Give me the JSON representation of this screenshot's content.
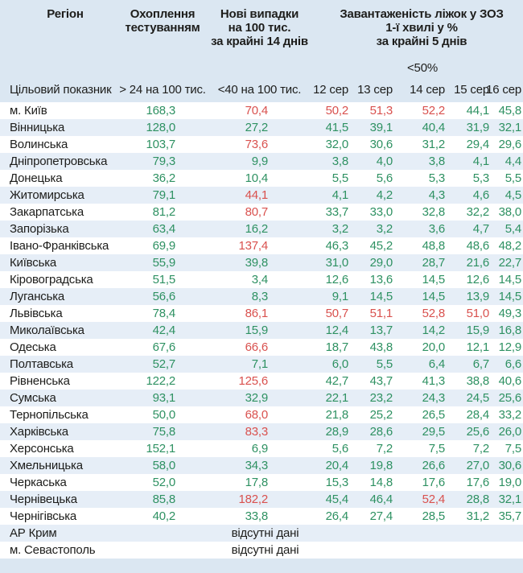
{
  "colors": {
    "bg": "#dbe7f2",
    "stripe": "#e6eef7",
    "dark": "#1d1d1b",
    "ok": "#2e9162",
    "bad": "#d9514e"
  },
  "chart_data": {
    "type": "table",
    "header": {
      "region": "Регіон",
      "testing": "Охоплення\nтестуванням",
      "new_cases": "Нові випадки\nна 100 тис.\nза крайні 14 днів",
      "beds": "Завантаженість ліжок у ЗОЗ\n1-ї хвилі у %\nза крайні 5 днів",
      "fifty": "<50%"
    },
    "target_row": {
      "label": "Цільовий показник",
      "testing": "> 24 на 100 тис.",
      "new_cases": "<40 на 100 тис.",
      "dates": [
        "12 сер",
        "13 сер",
        "14 сер",
        "15 сер",
        "16 сер"
      ]
    },
    "no_data_text": "відсутні дані",
    "rows": [
      {
        "region": "м. Київ",
        "testing": [
          "168,3",
          "ok"
        ],
        "cases": [
          "70,4",
          "bad"
        ],
        "days": [
          [
            "50,2",
            "bad"
          ],
          [
            "51,3",
            "bad"
          ],
          [
            "52,2",
            "bad"
          ],
          [
            "44,1",
            "ok"
          ],
          [
            "45,8",
            "ok"
          ]
        ]
      },
      {
        "region": "Вінницька",
        "testing": [
          "128,0",
          "ok"
        ],
        "cases": [
          "27,2",
          "ok"
        ],
        "days": [
          [
            "41,5",
            "ok"
          ],
          [
            "39,1",
            "ok"
          ],
          [
            "40,4",
            "ok"
          ],
          [
            "31,9",
            "ok"
          ],
          [
            "32,1",
            "ok"
          ]
        ]
      },
      {
        "region": "Волинська",
        "testing": [
          "103,7",
          "ok"
        ],
        "cases": [
          "73,6",
          "bad"
        ],
        "days": [
          [
            "32,0",
            "ok"
          ],
          [
            "30,6",
            "ok"
          ],
          [
            "31,2",
            "ok"
          ],
          [
            "29,4",
            "ok"
          ],
          [
            "29,6",
            "ok"
          ]
        ]
      },
      {
        "region": "Дніпропетровська",
        "testing": [
          "79,3",
          "ok"
        ],
        "cases": [
          "9,9",
          "ok"
        ],
        "days": [
          [
            "3,8",
            "ok"
          ],
          [
            "4,0",
            "ok"
          ],
          [
            "3,8",
            "ok"
          ],
          [
            "4,1",
            "ok"
          ],
          [
            "4,4",
            "ok"
          ]
        ]
      },
      {
        "region": "Донецька",
        "testing": [
          "36,2",
          "ok"
        ],
        "cases": [
          "10,4",
          "ok"
        ],
        "days": [
          [
            "5,5",
            "ok"
          ],
          [
            "5,6",
            "ok"
          ],
          [
            "5,3",
            "ok"
          ],
          [
            "5,3",
            "ok"
          ],
          [
            "5,5",
            "ok"
          ]
        ]
      },
      {
        "region": "Житомирська",
        "testing": [
          "79,1",
          "ok"
        ],
        "cases": [
          "44,1",
          "bad"
        ],
        "days": [
          [
            "4,1",
            "ok"
          ],
          [
            "4,2",
            "ok"
          ],
          [
            "4,3",
            "ok"
          ],
          [
            "4,6",
            "ok"
          ],
          [
            "4,5",
            "ok"
          ]
        ]
      },
      {
        "region": "Закарпатська",
        "testing": [
          "81,2",
          "ok"
        ],
        "cases": [
          "80,7",
          "bad"
        ],
        "days": [
          [
            "33,7",
            "ok"
          ],
          [
            "33,0",
            "ok"
          ],
          [
            "32,8",
            "ok"
          ],
          [
            "32,2",
            "ok"
          ],
          [
            "38,0",
            "ok"
          ]
        ]
      },
      {
        "region": "Запорізька",
        "testing": [
          "63,4",
          "ok"
        ],
        "cases": [
          "16,2",
          "ok"
        ],
        "days": [
          [
            "3,2",
            "ok"
          ],
          [
            "3,2",
            "ok"
          ],
          [
            "3,6",
            "ok"
          ],
          [
            "4,7",
            "ok"
          ],
          [
            "5,4",
            "ok"
          ]
        ]
      },
      {
        "region": "Івано-Франківська",
        "testing": [
          "69,9",
          "ok"
        ],
        "cases": [
          "137,4",
          "bad"
        ],
        "days": [
          [
            "46,3",
            "ok"
          ],
          [
            "45,2",
            "ok"
          ],
          [
            "48,8",
            "ok"
          ],
          [
            "48,6",
            "ok"
          ],
          [
            "48,2",
            "ok"
          ]
        ]
      },
      {
        "region": "Київська",
        "testing": [
          "55,9",
          "ok"
        ],
        "cases": [
          "39,8",
          "ok"
        ],
        "days": [
          [
            "31,0",
            "ok"
          ],
          [
            "29,0",
            "ok"
          ],
          [
            "28,7",
            "ok"
          ],
          [
            "21,6",
            "ok"
          ],
          [
            "22,7",
            "ok"
          ]
        ]
      },
      {
        "region": "Кіровоградська",
        "testing": [
          "51,5",
          "ok"
        ],
        "cases": [
          "3,4",
          "ok"
        ],
        "days": [
          [
            "12,6",
            "ok"
          ],
          [
            "13,6",
            "ok"
          ],
          [
            "14,5",
            "ok"
          ],
          [
            "12,6",
            "ok"
          ],
          [
            "14,5",
            "ok"
          ]
        ]
      },
      {
        "region": "Луганська",
        "testing": [
          "56,6",
          "ok"
        ],
        "cases": [
          "8,3",
          "ok"
        ],
        "days": [
          [
            "9,1",
            "ok"
          ],
          [
            "14,5",
            "ok"
          ],
          [
            "14,5",
            "ok"
          ],
          [
            "13,9",
            "ok"
          ],
          [
            "14,5",
            "ok"
          ]
        ]
      },
      {
        "region": "Львівська",
        "testing": [
          "78,4",
          "ok"
        ],
        "cases": [
          "86,1",
          "bad"
        ],
        "days": [
          [
            "50,7",
            "bad"
          ],
          [
            "51,1",
            "bad"
          ],
          [
            "52,8",
            "bad"
          ],
          [
            "51,0",
            "bad"
          ],
          [
            "49,3",
            "ok"
          ]
        ]
      },
      {
        "region": "Миколаївська",
        "testing": [
          "42,4",
          "ok"
        ],
        "cases": [
          "15,9",
          "ok"
        ],
        "days": [
          [
            "12,4",
            "ok"
          ],
          [
            "13,7",
            "ok"
          ],
          [
            "14,2",
            "ok"
          ],
          [
            "15,9",
            "ok"
          ],
          [
            "16,8",
            "ok"
          ]
        ]
      },
      {
        "region": "Одеська",
        "testing": [
          "67,6",
          "ok"
        ],
        "cases": [
          "66,6",
          "bad"
        ],
        "days": [
          [
            "18,7",
            "ok"
          ],
          [
            "43,8",
            "ok"
          ],
          [
            "20,0",
            "ok"
          ],
          [
            "12,1",
            "ok"
          ],
          [
            "12,9",
            "ok"
          ]
        ]
      },
      {
        "region": "Полтавська",
        "testing": [
          "52,7",
          "ok"
        ],
        "cases": [
          "7,1",
          "ok"
        ],
        "days": [
          [
            "6,0",
            "ok"
          ],
          [
            "5,5",
            "ok"
          ],
          [
            "6,4",
            "ok"
          ],
          [
            "6,7",
            "ok"
          ],
          [
            "6,6",
            "ok"
          ]
        ]
      },
      {
        "region": "Рівненська",
        "testing": [
          "122,2",
          "ok"
        ],
        "cases": [
          "125,6",
          "bad"
        ],
        "days": [
          [
            "42,7",
            "ok"
          ],
          [
            "43,7",
            "ok"
          ],
          [
            "41,3",
            "ok"
          ],
          [
            "38,8",
            "ok"
          ],
          [
            "40,6",
            "ok"
          ]
        ]
      },
      {
        "region": "Сумська",
        "testing": [
          "93,1",
          "ok"
        ],
        "cases": [
          "32,9",
          "ok"
        ],
        "days": [
          [
            "22,1",
            "ok"
          ],
          [
            "23,2",
            "ok"
          ],
          [
            "24,3",
            "ok"
          ],
          [
            "24,5",
            "ok"
          ],
          [
            "25,6",
            "ok"
          ]
        ]
      },
      {
        "region": "Тернопільська",
        "testing": [
          "50,0",
          "ok"
        ],
        "cases": [
          "68,0",
          "bad"
        ],
        "days": [
          [
            "21,8",
            "ok"
          ],
          [
            "25,2",
            "ok"
          ],
          [
            "26,5",
            "ok"
          ],
          [
            "28,4",
            "ok"
          ],
          [
            "33,2",
            "ok"
          ]
        ]
      },
      {
        "region": "Харківська",
        "testing": [
          "75,8",
          "ok"
        ],
        "cases": [
          "83,3",
          "bad"
        ],
        "days": [
          [
            "28,9",
            "ok"
          ],
          [
            "28,6",
            "ok"
          ],
          [
            "29,5",
            "ok"
          ],
          [
            "25,6",
            "ok"
          ],
          [
            "26,0",
            "ok"
          ]
        ]
      },
      {
        "region": "Херсонська",
        "testing": [
          "152,1",
          "ok"
        ],
        "cases": [
          "6,9",
          "ok"
        ],
        "days": [
          [
            "5,6",
            "ok"
          ],
          [
            "7,2",
            "ok"
          ],
          [
            "7,5",
            "ok"
          ],
          [
            "7,2",
            "ok"
          ],
          [
            "7,5",
            "ok"
          ]
        ]
      },
      {
        "region": "Хмельницька",
        "testing": [
          "58,0",
          "ok"
        ],
        "cases": [
          "34,3",
          "ok"
        ],
        "days": [
          [
            "20,4",
            "ok"
          ],
          [
            "19,8",
            "ok"
          ],
          [
            "26,6",
            "ok"
          ],
          [
            "27,0",
            "ok"
          ],
          [
            "30,6",
            "ok"
          ]
        ]
      },
      {
        "region": "Черкаська",
        "testing": [
          "52,0",
          "ok"
        ],
        "cases": [
          "17,8",
          "ok"
        ],
        "days": [
          [
            "15,3",
            "ok"
          ],
          [
            "14,8",
            "ok"
          ],
          [
            "17,6",
            "ok"
          ],
          [
            "17,6",
            "ok"
          ],
          [
            "19,0",
            "ok"
          ]
        ]
      },
      {
        "region": "Чернівецька",
        "testing": [
          "85,8",
          "ok"
        ],
        "cases": [
          "182,2",
          "bad"
        ],
        "days": [
          [
            "45,4",
            "ok"
          ],
          [
            "46,4",
            "ok"
          ],
          [
            "52,4",
            "bad"
          ],
          [
            "28,8",
            "ok"
          ],
          [
            "32,1",
            "ok"
          ]
        ]
      },
      {
        "region": "Чернігівська",
        "testing": [
          "40,2",
          "ok"
        ],
        "cases": [
          "33,8",
          "ok"
        ],
        "days": [
          [
            "26,4",
            "ok"
          ],
          [
            "27,4",
            "ok"
          ],
          [
            "28,5",
            "ok"
          ],
          [
            "31,2",
            "ok"
          ],
          [
            "35,7",
            "ok"
          ]
        ]
      },
      {
        "region": "АР Крим",
        "no_data": true
      },
      {
        "region": "м. Севастополь",
        "no_data": true
      }
    ]
  }
}
